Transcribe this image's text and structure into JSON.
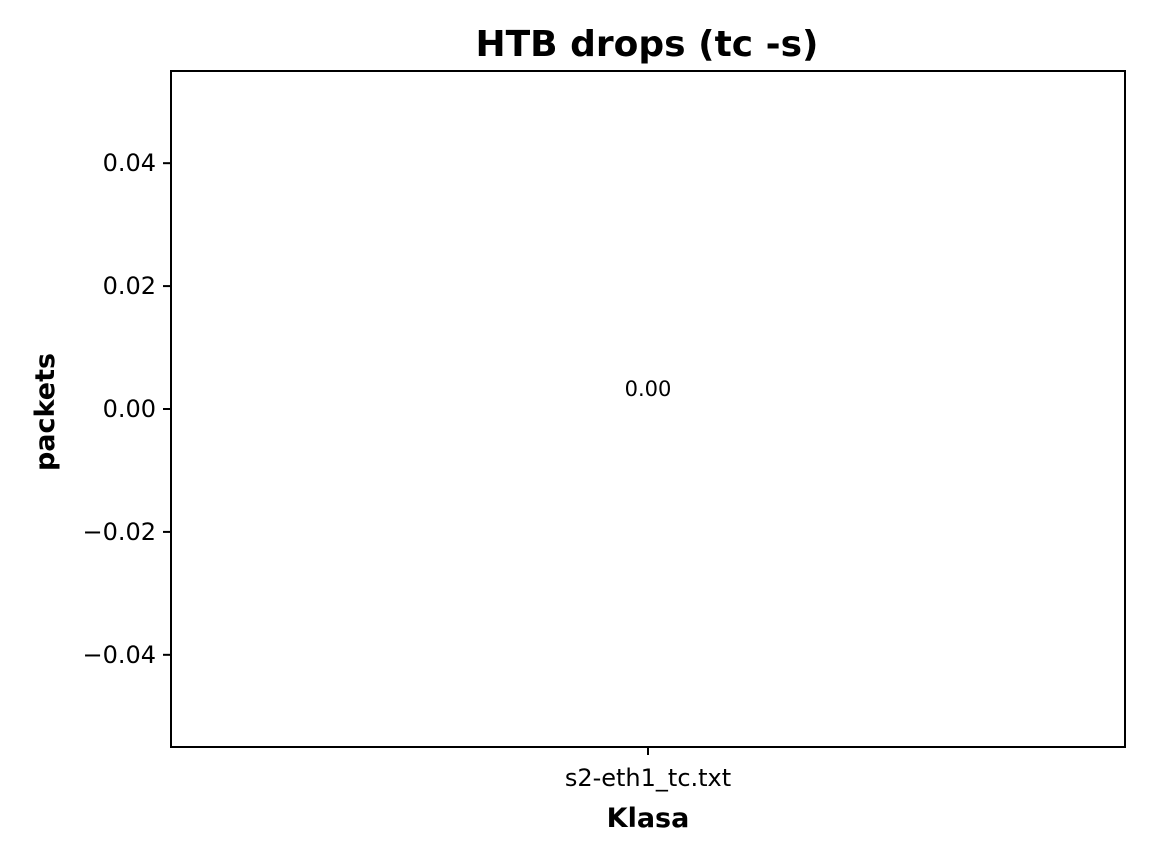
{
  "chart_data": {
    "type": "bar",
    "title": "HTB drops (tc -s)",
    "xlabel": "Klasa",
    "ylabel": "packets",
    "categories": [
      "s2-eth1_tc.txt"
    ],
    "values": [
      0
    ],
    "data_labels": [
      "0.00"
    ],
    "ylim": [
      -0.055,
      0.055
    ],
    "yticks": [
      0.04,
      0.02,
      0.0,
      -0.02,
      -0.04
    ],
    "ytick_labels": [
      "0.04",
      "0.02",
      "0.00",
      "−0.02",
      "−0.04"
    ],
    "grid": false,
    "legend": "none",
    "colors": {
      "bar": "#1f77b4",
      "frame": "#000000"
    }
  }
}
